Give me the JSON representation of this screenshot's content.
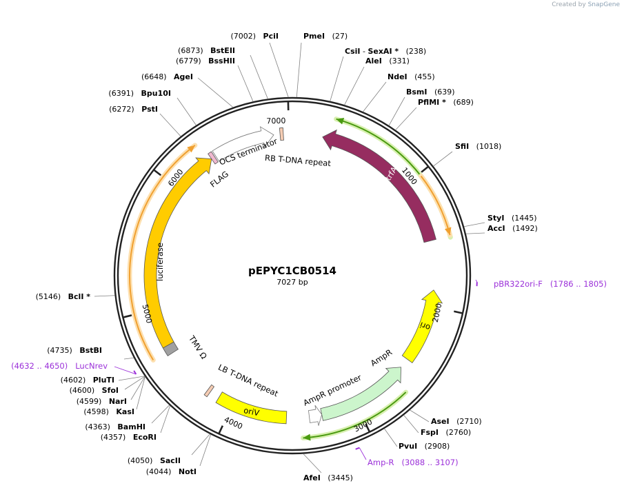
{
  "credit": {
    "prefix": "Created by",
    "brand": "SnapGene"
  },
  "plasmid": {
    "name": "pEPYC1CB0514",
    "size_label": "7027 bp",
    "length": 7027
  },
  "ticks": [
    {
      "pos": 1000,
      "label": "1000"
    },
    {
      "pos": 2000,
      "label": "2000"
    },
    {
      "pos": 3000,
      "label": "3000"
    },
    {
      "pos": 4000,
      "label": "4000"
    },
    {
      "pos": 5000,
      "label": "5000"
    },
    {
      "pos": 6000,
      "label": "6000"
    },
    {
      "pos": 7000,
      "label": "7000"
    }
  ],
  "enzymes": [
    {
      "name": "PciI",
      "pos_label": "(7002)",
      "pos": 7002
    },
    {
      "name": "PmeI",
      "pos_label": "(27)",
      "pos": 27
    },
    {
      "name": "CsiI",
      "sep": " - ",
      "name2": "SexAI *",
      "pos_label": "(238)",
      "pos": 238
    },
    {
      "name": "AleI",
      "pos_label": "(331)",
      "pos": 331
    },
    {
      "name": "NdeI",
      "pos_label": "(455)",
      "pos": 455
    },
    {
      "name": "BsmI",
      "pos_label": "(639)",
      "pos": 639
    },
    {
      "name": "PflMI *",
      "pos_label": "(689)",
      "pos": 689
    },
    {
      "name": "SfiI",
      "pos_label": "(1018)",
      "pos": 1018
    },
    {
      "name": "StyI",
      "pos_label": "(1445)",
      "pos": 1445
    },
    {
      "name": "AccI",
      "pos_label": "(1492)",
      "pos": 1492
    },
    {
      "name": "AseI",
      "pos_label": "(2710)",
      "pos": 2710
    },
    {
      "name": "FspI",
      "pos_label": "(2760)",
      "pos": 2760
    },
    {
      "name": "PvuI",
      "pos_label": "(2908)",
      "pos": 2908
    },
    {
      "name": "AfeI",
      "pos_label": "(3445)",
      "pos": 3445
    },
    {
      "name": "NotI",
      "pos_label": "(4044)",
      "pos": 4044
    },
    {
      "name": "SacII",
      "pos_label": "(4050)",
      "pos": 4050
    },
    {
      "name": "EcoRI",
      "pos_label": "(4357)",
      "pos": 4357
    },
    {
      "name": "BamHI",
      "pos_label": "(4363)",
      "pos": 4363
    },
    {
      "name": "KasI",
      "pos_label": "(4598)",
      "pos": 4598
    },
    {
      "name": "NarI",
      "pos_label": "(4599)",
      "pos": 4599
    },
    {
      "name": "SfoI",
      "pos_label": "(4600)",
      "pos": 4600
    },
    {
      "name": "PluTI",
      "pos_label": "(4602)",
      "pos": 4602
    },
    {
      "name": "BstBI",
      "pos_label": "(4735)",
      "pos": 4735
    },
    {
      "name": "BclI *",
      "pos_label": "(5146)",
      "pos": 5146
    },
    {
      "name": "PstI",
      "pos_label": "(6272)",
      "pos": 6272
    },
    {
      "name": "Bpu10I",
      "pos_label": "(6391)",
      "pos": 6391
    },
    {
      "name": "AgeI",
      "pos_label": "(6648)",
      "pos": 6648
    },
    {
      "name": "BssHII",
      "pos_label": "(6779)",
      "pos": 6779
    },
    {
      "name": "BstEII",
      "pos_label": "(6873)",
      "pos": 6873
    }
  ],
  "primers": [
    {
      "name": "pBR322ori-F",
      "range_label": "(1786 .. 1805)",
      "pos": 1795
    },
    {
      "name": "Amp-R",
      "range_label": "(3088 .. 3107)",
      "pos": 3098
    },
    {
      "name": "LucNrev",
      "range_label": "(4632 .. 4650)",
      "pos": 4641
    }
  ],
  "features": [
    {
      "name": "trfA",
      "start": 240,
      "end": 1480,
      "dir": -1,
      "color": "#962d60",
      "label_color": "#ffffff"
    },
    {
      "name": "ori",
      "start": 1870,
      "end": 2460,
      "dir": -1,
      "color": "#ffff00",
      "label_color": "#000000"
    },
    {
      "name": "AmpR",
      "start": 2540,
      "end": 3280,
      "dir": -1,
      "color": "#ccf5cc",
      "label_color": "#000000"
    },
    {
      "name": "AmpR promoter",
      "start": 3280,
      "end": 3380,
      "dir": -1,
      "color": "#ffffff",
      "label_color": "#000000"
    },
    {
      "name": "oriV",
      "start": 3560,
      "end": 4120,
      "dir": 0,
      "color": "#ffff00",
      "label_color": "#000000"
    },
    {
      "name": "LB T-DNA repeat",
      "start": 4200,
      "end": 4226,
      "dir": 0,
      "color": "#f5ccb3",
      "label_color": "#000000"
    },
    {
      "name": "TMV Ω",
      "start": 4630,
      "end": 4700,
      "dir": 0,
      "color": "#a0a0a0",
      "label_color": "#000000"
    },
    {
      "name": "luciferase",
      "start": 4700,
      "end": 6350,
      "dir": 1,
      "color": "#ffcc00",
      "label_color": "#000000"
    },
    {
      "name": "FLAG",
      "start": 6350,
      "end": 6380,
      "dir": 0,
      "color": "#f0b8d0",
      "label_color": "#000000"
    },
    {
      "name": "OCS terminator",
      "start": 6390,
      "end": 6880,
      "dir": 1,
      "color": "#ffffff",
      "label_color": "#000000"
    },
    {
      "name": "RB T-DNA repeat",
      "start": 6930,
      "end": 6956,
      "dir": 0,
      "color": "#f5ccb3",
      "label_color": "#000000"
    }
  ],
  "outer_arcs": [
    {
      "start": 305,
      "end": 1490,
      "dir": -1,
      "color": "#4a9a10",
      "glow": "#d8f0b0"
    },
    {
      "start": 1020,
      "end": 1475,
      "dir": 1,
      "color": "#f0a030",
      "glow": "#fde0b0"
    },
    {
      "start": 2650,
      "end": 3440,
      "dir": 1,
      "color": "#4a9a10",
      "glow": "#d8f0b0"
    },
    {
      "start": 4660,
      "end": 6310,
      "dir": 1,
      "color": "#f0a030",
      "glow": "#fde0b0"
    }
  ],
  "colors": {
    "backbone": "#222222",
    "primer": "#9b30d9",
    "tick": "#222222",
    "leader": "#808080"
  }
}
